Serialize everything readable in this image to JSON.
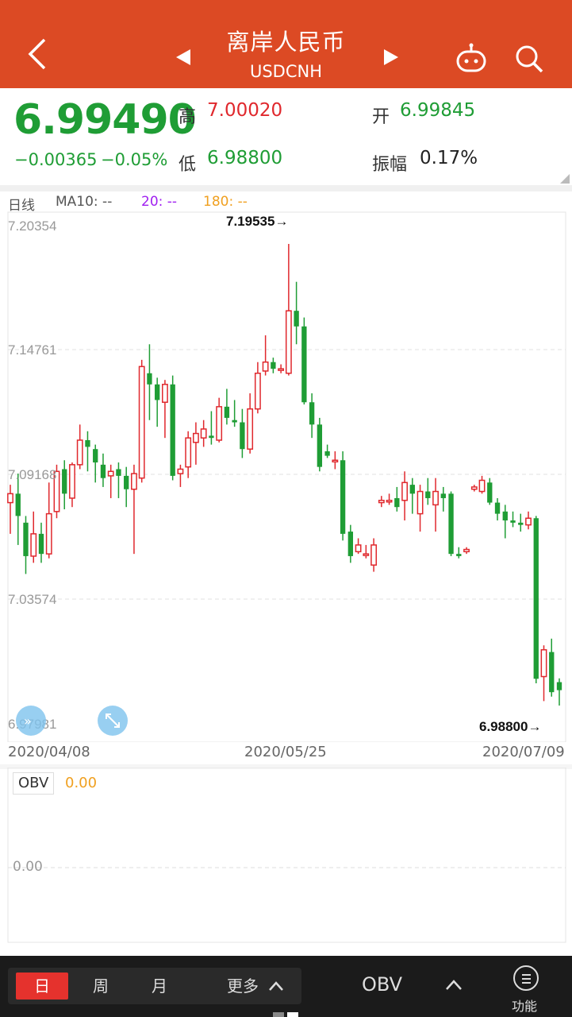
{
  "header": {
    "title": "离岸人民币",
    "symbol": "USDCNH"
  },
  "quote": {
    "price": "6.99490",
    "change": "−0.00365",
    "change_pct": "−0.05%",
    "high_label": "高",
    "high": "7.00020",
    "low_label": "低",
    "low": "6.98800",
    "open_label": "开",
    "open": "6.99845",
    "amplitude_label": "振幅",
    "amplitude": "0.17%"
  },
  "chart": {
    "period_label": "日线",
    "ma10": "MA10: --",
    "ma20": "20: --",
    "ma180": "180: --",
    "y_ticks": [
      "7.20354",
      "7.14761",
      "7.09168",
      "7.03574",
      "6.97981"
    ],
    "max_marker": "7.19535→",
    "min_marker": "6.98800→",
    "dates": [
      "2020/04/08",
      "2020/05/25",
      "2020/07/09"
    ]
  },
  "chart_data": {
    "type": "candlestick",
    "x_range": [
      "2020/04/08",
      "2020/07/09"
    ],
    "ylim": [
      6.97981,
      7.20354
    ],
    "y_ticks": [
      7.20354,
      7.14761,
      7.09168,
      7.03574,
      6.97981
    ],
    "annotations": {
      "max": 7.19535,
      "min": 6.988
    },
    "candles": [
      [
        7.079,
        7.083,
        7.087,
        7.065
      ],
      [
        7.083,
        7.073,
        7.092,
        7.06
      ],
      [
        7.07,
        7.055,
        7.073,
        7.047
      ],
      [
        7.055,
        7.065,
        7.075,
        7.052
      ],
      [
        7.065,
        7.056,
        7.07,
        7.052
      ],
      [
        7.056,
        7.074,
        7.088,
        7.054
      ],
      [
        7.075,
        7.093,
        7.096,
        7.072
      ],
      [
        7.094,
        7.083,
        7.098,
        7.076
      ],
      [
        7.081,
        7.096,
        7.097,
        7.077
      ],
      [
        7.096,
        7.107,
        7.114,
        7.094
      ],
      [
        7.107,
        7.104,
        7.111,
        7.093
      ],
      [
        7.103,
        7.097,
        7.105,
        7.088
      ],
      [
        7.096,
        7.09,
        7.101,
        7.086
      ],
      [
        7.091,
        7.093,
        7.096,
        7.081
      ],
      [
        7.094,
        7.091,
        7.097,
        7.081
      ],
      [
        7.091,
        7.085,
        7.095,
        7.077
      ],
      [
        7.085,
        7.092,
        7.096,
        7.056
      ],
      [
        7.09,
        7.14,
        7.143,
        7.088
      ],
      [
        7.137,
        7.132,
        7.15,
        7.116
      ],
      [
        7.132,
        7.125,
        7.135,
        7.113
      ],
      [
        7.124,
        7.132,
        7.134,
        7.108
      ],
      [
        7.132,
        7.091,
        7.136,
        7.089
      ],
      [
        7.092,
        7.094,
        7.096,
        7.086
      ],
      [
        7.095,
        7.108,
        7.111,
        7.09
      ],
      [
        7.106,
        7.11,
        7.115,
        7.096
      ],
      [
        7.108,
        7.112,
        7.116,
        7.104
      ],
      [
        7.109,
        7.108,
        7.12,
        7.105
      ],
      [
        7.107,
        7.122,
        7.126,
        7.106
      ],
      [
        7.122,
        7.117,
        7.13,
        7.114
      ],
      [
        7.116,
        7.115,
        7.125,
        7.113
      ],
      [
        7.115,
        7.103,
        7.121,
        7.099
      ],
      [
        7.103,
        7.121,
        7.128,
        7.101
      ],
      [
        7.121,
        7.137,
        7.142,
        7.119
      ],
      [
        7.138,
        7.142,
        7.154,
        7.136
      ],
      [
        7.142,
        7.139,
        7.144,
        7.137
      ],
      [
        7.139,
        7.139,
        7.141,
        7.137
      ],
      [
        7.137,
        7.165,
        7.195,
        7.136
      ],
      [
        7.165,
        7.158,
        7.178,
        7.15
      ],
      [
        7.158,
        7.124,
        7.162,
        7.123
      ],
      [
        7.124,
        7.114,
        7.128,
        7.108
      ],
      [
        7.114,
        7.095,
        7.117,
        7.093
      ],
      [
        7.102,
        7.1,
        7.105,
        7.099
      ],
      [
        7.098,
        7.098,
        7.102,
        7.094
      ],
      [
        7.098,
        7.065,
        7.102,
        7.062
      ],
      [
        7.066,
        7.055,
        7.069,
        7.052
      ],
      [
        7.057,
        7.06,
        7.063,
        7.056
      ],
      [
        7.056,
        7.056,
        7.06,
        7.054
      ],
      [
        7.051,
        7.06,
        7.063,
        7.048
      ],
      [
        7.079,
        7.08,
        7.082,
        7.077
      ],
      [
        7.08,
        7.08,
        7.083,
        7.078
      ],
      [
        7.081,
        7.077,
        7.086,
        7.075
      ],
      [
        7.08,
        7.088,
        7.093,
        7.071
      ],
      [
        7.087,
        7.083,
        7.09,
        7.074
      ],
      [
        7.074,
        7.084,
        7.087,
        7.066
      ],
      [
        7.084,
        7.081,
        7.09,
        7.078
      ],
      [
        7.078,
        7.084,
        7.09,
        7.066
      ],
      [
        7.083,
        7.081,
        7.086,
        7.075
      ],
      [
        7.083,
        7.056,
        7.084,
        7.055
      ],
      [
        7.056,
        7.055,
        7.059,
        7.054
      ],
      [
        7.057,
        7.058,
        7.059,
        7.056
      ],
      [
        7.085,
        7.086,
        7.087,
        7.084
      ],
      [
        7.084,
        7.089,
        7.091,
        7.083
      ],
      [
        7.088,
        7.079,
        7.09,
        7.078
      ],
      [
        7.079,
        7.074,
        7.081,
        7.071
      ],
      [
        7.075,
        7.071,
        7.078,
        7.063
      ],
      [
        7.071,
        7.07,
        7.075,
        7.068
      ],
      [
        7.07,
        7.069,
        7.074,
        7.066
      ],
      [
        7.069,
        7.072,
        7.075,
        7.067
      ],
      [
        7.072,
        7.0,
        7.073,
        6.998
      ],
      [
        7.001,
        7.013,
        7.015,
        6.99
      ],
      [
        7.012,
        6.994,
        7.018,
        6.992
      ],
      [
        6.9985,
        6.9949,
        7.0002,
        6.988
      ]
    ]
  },
  "obv": {
    "label": "OBV",
    "value": "0.00",
    "tick": "0.00"
  },
  "bottom": {
    "tab_day": "日",
    "tab_week": "周",
    "tab_month": "月",
    "tab_more": "更多",
    "indicator": "OBV",
    "func": "功能"
  },
  "colors": {
    "header": "#dc4a24",
    "up": "#e0282d",
    "down": "#1f9d35",
    "accent": "#e5322d"
  }
}
